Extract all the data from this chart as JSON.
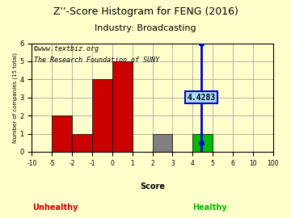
{
  "title": "Z''-Score Histogram for FENG (2016)",
  "subtitle": "Industry: Broadcasting",
  "watermark1": "©www.textbiz.org",
  "watermark2": "The Research Foundation of SUNY",
  "xlabel": "Score",
  "ylabel": "Number of companies (15 total)",
  "bin_labels": [
    "-10",
    "-5",
    "-2",
    "-1",
    "0",
    "1",
    "2",
    "3",
    "4",
    "5",
    "6",
    "10",
    "100"
  ],
  "counts": [
    0,
    2,
    1,
    4,
    5,
    0,
    1,
    0,
    1,
    0,
    0,
    0
  ],
  "bar_colors": [
    "#cc0000",
    "#cc0000",
    "#cc0000",
    "#cc0000",
    "#cc0000",
    "#808080",
    "#808080",
    "#00bb00",
    "#00bb00",
    "#00bb00",
    "#00bb00",
    "#00bb00"
  ],
  "feng_score_label": "4.4283",
  "feng_score_line_color": "#0000cc",
  "feng_score_box_facecolor": "#aaddff",
  "feng_score_box_edgecolor": "#0000cc",
  "feng_bin_index": 8.4283,
  "ylim": [
    0,
    6
  ],
  "yticks": [
    0,
    1,
    2,
    3,
    4,
    5,
    6
  ],
  "unhealthy_label": "Unhealthy",
  "healthy_label": "Healthy",
  "unhealthy_color": "#cc0000",
  "healthy_color": "#00bb00",
  "background_color": "#ffffcc",
  "grid_color": "#999999",
  "title_fontsize": 9,
  "watermark_fontsize": 6
}
